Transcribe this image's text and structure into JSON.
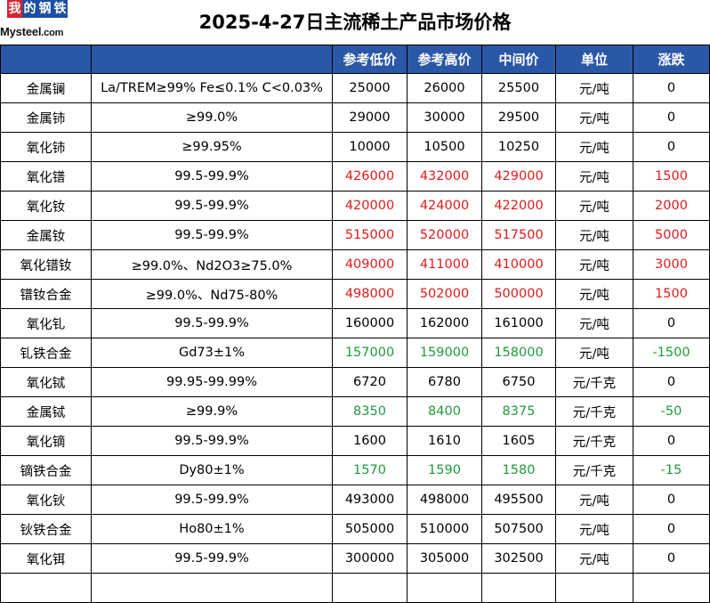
{
  "logo": {
    "cn_chars": [
      "我",
      "的",
      "钢",
      "铁"
    ],
    "en": "Mysteel",
    "en_suffix": ".com"
  },
  "title": "2025-4-27日主流稀土产品市场价格",
  "headers": [
    "",
    "",
    "参考低价",
    "参考高价",
    "中间价",
    "单位",
    "涨跌"
  ],
  "colors": {
    "header_bg": "#2b57a7",
    "up": "#e21a1a",
    "down": "#1f9a3c"
  },
  "rows": [
    {
      "name": "金属镧",
      "spec": "La/TREM≥99% Fe≤0.1% C<0.03%",
      "low": "25000",
      "high": "26000",
      "mid": "25500",
      "unit": "元/吨",
      "change": "0",
      "trend": "flat"
    },
    {
      "name": "金属铈",
      "spec": "≥99.0%",
      "low": "29000",
      "high": "30000",
      "mid": "29500",
      "unit": "元/吨",
      "change": "0",
      "trend": "flat"
    },
    {
      "name": "氧化铈",
      "spec": "≥99.95%",
      "low": "10000",
      "high": "10500",
      "mid": "10250",
      "unit": "元/吨",
      "change": "0",
      "trend": "flat"
    },
    {
      "name": "氧化镨",
      "spec": "99.5-99.9%",
      "low": "426000",
      "high": "432000",
      "mid": "429000",
      "unit": "元/吨",
      "change": "1500",
      "trend": "up"
    },
    {
      "name": "氧化钕",
      "spec": "99.5-99.9%",
      "low": "420000",
      "high": "424000",
      "mid": "422000",
      "unit": "元/吨",
      "change": "2000",
      "trend": "up"
    },
    {
      "name": "金属钕",
      "spec": "99.5-99.9%",
      "low": "515000",
      "high": "520000",
      "mid": "517500",
      "unit": "元/吨",
      "change": "5000",
      "trend": "up"
    },
    {
      "name": "氧化镨钕",
      "spec": "≥99.0%、Nd2O3≥75.0%",
      "low": "409000",
      "high": "411000",
      "mid": "410000",
      "unit": "元/吨",
      "change": "3000",
      "trend": "up"
    },
    {
      "name": "镨钕合金",
      "spec": "≥99.0%、Nd75-80%",
      "low": "498000",
      "high": "502000",
      "mid": "500000",
      "unit": "元/吨",
      "change": "1500",
      "trend": "up"
    },
    {
      "name": "氧化钆",
      "spec": "99.5-99.9%",
      "low": "160000",
      "high": "162000",
      "mid": "161000",
      "unit": "元/吨",
      "change": "0",
      "trend": "flat"
    },
    {
      "name": "钆铁合金",
      "spec": "Gd73±1%",
      "low": "157000",
      "high": "159000",
      "mid": "158000",
      "unit": "元/吨",
      "change": "-1500",
      "trend": "down"
    },
    {
      "name": "氧化铽",
      "spec": "99.95-99.99%",
      "low": "6720",
      "high": "6780",
      "mid": "6750",
      "unit": "元/千克",
      "change": "0",
      "trend": "flat"
    },
    {
      "name": "金属铽",
      "spec": "≥99.9%",
      "low": "8350",
      "high": "8400",
      "mid": "8375",
      "unit": "元/千克",
      "change": "-50",
      "trend": "down"
    },
    {
      "name": "氧化镝",
      "spec": "99.5-99.9%",
      "low": "1600",
      "high": "1610",
      "mid": "1605",
      "unit": "元/千克",
      "change": "0",
      "trend": "flat"
    },
    {
      "name": "镝铁合金",
      "spec": "Dy80±1%",
      "low": "1570",
      "high": "1590",
      "mid": "1580",
      "unit": "元/千克",
      "change": "-15",
      "trend": "down"
    },
    {
      "name": "氧化钬",
      "spec": "99.5-99.9%",
      "low": "493000",
      "high": "498000",
      "mid": "495500",
      "unit": "元/吨",
      "change": "0",
      "trend": "flat"
    },
    {
      "name": "钬铁合金",
      "spec": "Ho80±1%",
      "low": "505000",
      "high": "510000",
      "mid": "507500",
      "unit": "元/吨",
      "change": "0",
      "trend": "flat"
    },
    {
      "name": "氧化铒",
      "spec": "99.5-99.9%",
      "low": "300000",
      "high": "305000",
      "mid": "302500",
      "unit": "元/吨",
      "change": "0",
      "trend": "flat"
    },
    {
      "name": "",
      "spec": "",
      "low": "",
      "high": "",
      "mid": "",
      "unit": "",
      "change": "",
      "trend": "flat"
    }
  ]
}
